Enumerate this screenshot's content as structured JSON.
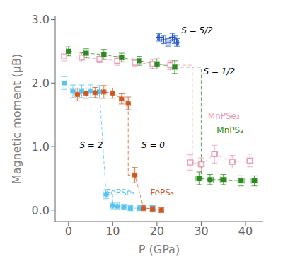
{
  "chart_data": {
    "type": "scatter",
    "xlabel": "P (GPa)",
    "ylabel": "Magnetic moment (μB)",
    "xlim": [
      -3,
      44
    ],
    "ylim": [
      -0.18,
      3.05
    ],
    "xticks": [
      0,
      10,
      20,
      30,
      40
    ],
    "yticks": [
      {
        "value": 0.0,
        "label": "0.0"
      },
      {
        "value": 1.0,
        "label": "1.0"
      },
      {
        "value": 2.0,
        "label": "2.0"
      },
      {
        "value": 3.0,
        "label": "3.0"
      }
    ],
    "grid": false,
    "series": [
      {
        "color": "#58C4F0",
        "marker": "circle",
        "line_style": "dashed",
        "x": [
          -1,
          1,
          3,
          5,
          7,
          8.5,
          10,
          11,
          12.5,
          14,
          16,
          19
        ],
        "values": [
          2.0,
          1.87,
          1.87,
          1.87,
          1.86,
          0.25,
          0.07,
          0.06,
          0.05,
          0.03,
          0.03,
          0.03
        ],
        "yerr": [
          0.1,
          0.1,
          0.1,
          0.1,
          0.1,
          0.07,
          0.05,
          0.05,
          0.04,
          0.04,
          0.04,
          0.04
        ],
        "xerr": [
          0.5,
          0.5,
          0.5,
          0.5,
          0.5,
          0.5,
          0.5,
          0.5,
          0.5,
          0.5,
          0.5,
          0.5
        ],
        "step": {
          "x": 10,
          "y_hi": 0.25,
          "y_lo": 0.07
        }
      },
      {
        "color": "#D05820",
        "marker": "circle",
        "line_style": "dashed",
        "x": [
          2,
          4,
          6,
          8,
          10,
          12,
          13.5,
          15,
          17,
          19,
          21
        ],
        "values": [
          1.82,
          1.84,
          1.85,
          1.86,
          1.84,
          1.75,
          1.68,
          0.55,
          0.03,
          0.02,
          0.0
        ],
        "yerr": [
          0.1,
          0.08,
          0.08,
          0.1,
          0.08,
          0.08,
          0.1,
          0.12,
          0.04,
          0.04,
          0.04
        ],
        "xerr": [
          0.5,
          0.5,
          0.5,
          0.5,
          0.5,
          0.5,
          0.5,
          0.5,
          0.5,
          0.5,
          0.5
        ],
        "step": {
          "x": 13.5,
          "y_hi": 1.68,
          "y_lo": 0.55
        }
      },
      {
        "color": "#E899B0",
        "marker": "open_square",
        "line_style": "dashed",
        "x": [
          -1,
          3,
          7,
          11,
          15,
          19,
          23,
          27.5,
          30,
          33,
          37,
          41
        ],
        "values": [
          2.42,
          2.4,
          2.38,
          2.35,
          2.32,
          2.3,
          2.28,
          0.75,
          0.72,
          0.88,
          0.76,
          0.78
        ],
        "yerr": [
          0.07,
          0.07,
          0.06,
          0.07,
          0.06,
          0.07,
          0.07,
          0.12,
          0.1,
          0.14,
          0.1,
          0.1
        ],
        "xerr": [
          0.5,
          0.5,
          0.5,
          0.5,
          0.5,
          0.5,
          0.5,
          0.7,
          0.7,
          0.7,
          0.7,
          0.7
        ],
        "step": {
          "x": 28.0,
          "y_hi": 2.28,
          "y_lo": 0.75
        }
      },
      {
        "color": "#2B8B20",
        "marker": "square",
        "line_style": "dashed",
        "x": [
          0,
          4,
          8,
          12,
          16,
          20,
          24,
          29.5,
          32,
          35,
          39,
          42
        ],
        "values": [
          2.5,
          2.47,
          2.45,
          2.4,
          2.35,
          2.3,
          2.25,
          0.5,
          0.48,
          0.48,
          0.46,
          0.46
        ],
        "yerr": [
          0.07,
          0.07,
          0.08,
          0.07,
          0.07,
          0.08,
          0.1,
          0.1,
          0.08,
          0.08,
          0.08,
          0.08
        ],
        "xerr": [
          0.5,
          0.5,
          0.5,
          0.5,
          0.5,
          0.5,
          0.5,
          0.7,
          0.7,
          0.7,
          0.7,
          0.7
        ],
        "step": {
          "x": 30.0,
          "y_hi": 2.25,
          "y_lo": 0.5
        }
      },
      {
        "color": "#2255CC",
        "marker": "plus",
        "line_style": "none",
        "x": [
          20.5,
          21.5,
          22.5,
          23.5,
          24.0,
          24.5
        ],
        "values": [
          2.72,
          2.68,
          2.64,
          2.72,
          2.68,
          2.64
        ],
        "yerr": [
          0.06,
          0.06,
          0.06,
          0.06,
          0.06,
          0.06
        ],
        "xerr": [
          0.4,
          0.4,
          0.4,
          0.4,
          0.4,
          0.4
        ]
      }
    ],
    "annotations": [
      {
        "text": "S = 2",
        "x": 2.5,
        "y": 1.02
      },
      {
        "text": "S = 0",
        "x": 16.5,
        "y": 1.02
      },
      {
        "text": "S = 5/2",
        "x": 25.5,
        "y": 2.82
      },
      {
        "text": "S = 1/2",
        "x": 30.5,
        "y": 2.18
      },
      {
        "text": "FePSe₃",
        "x": 8.5,
        "y": 0.27,
        "color": "#58C4F0"
      },
      {
        "text": "FePS₃",
        "x": 18.5,
        "y": 0.27,
        "color": "#D05820"
      },
      {
        "text": "MnPSe₃",
        "x": 31.5,
        "y": 1.47,
        "color": "#E899B0"
      },
      {
        "text": "MnPS₃",
        "x": 33.5,
        "y": 1.25,
        "color": "#2B8B20"
      }
    ]
  }
}
